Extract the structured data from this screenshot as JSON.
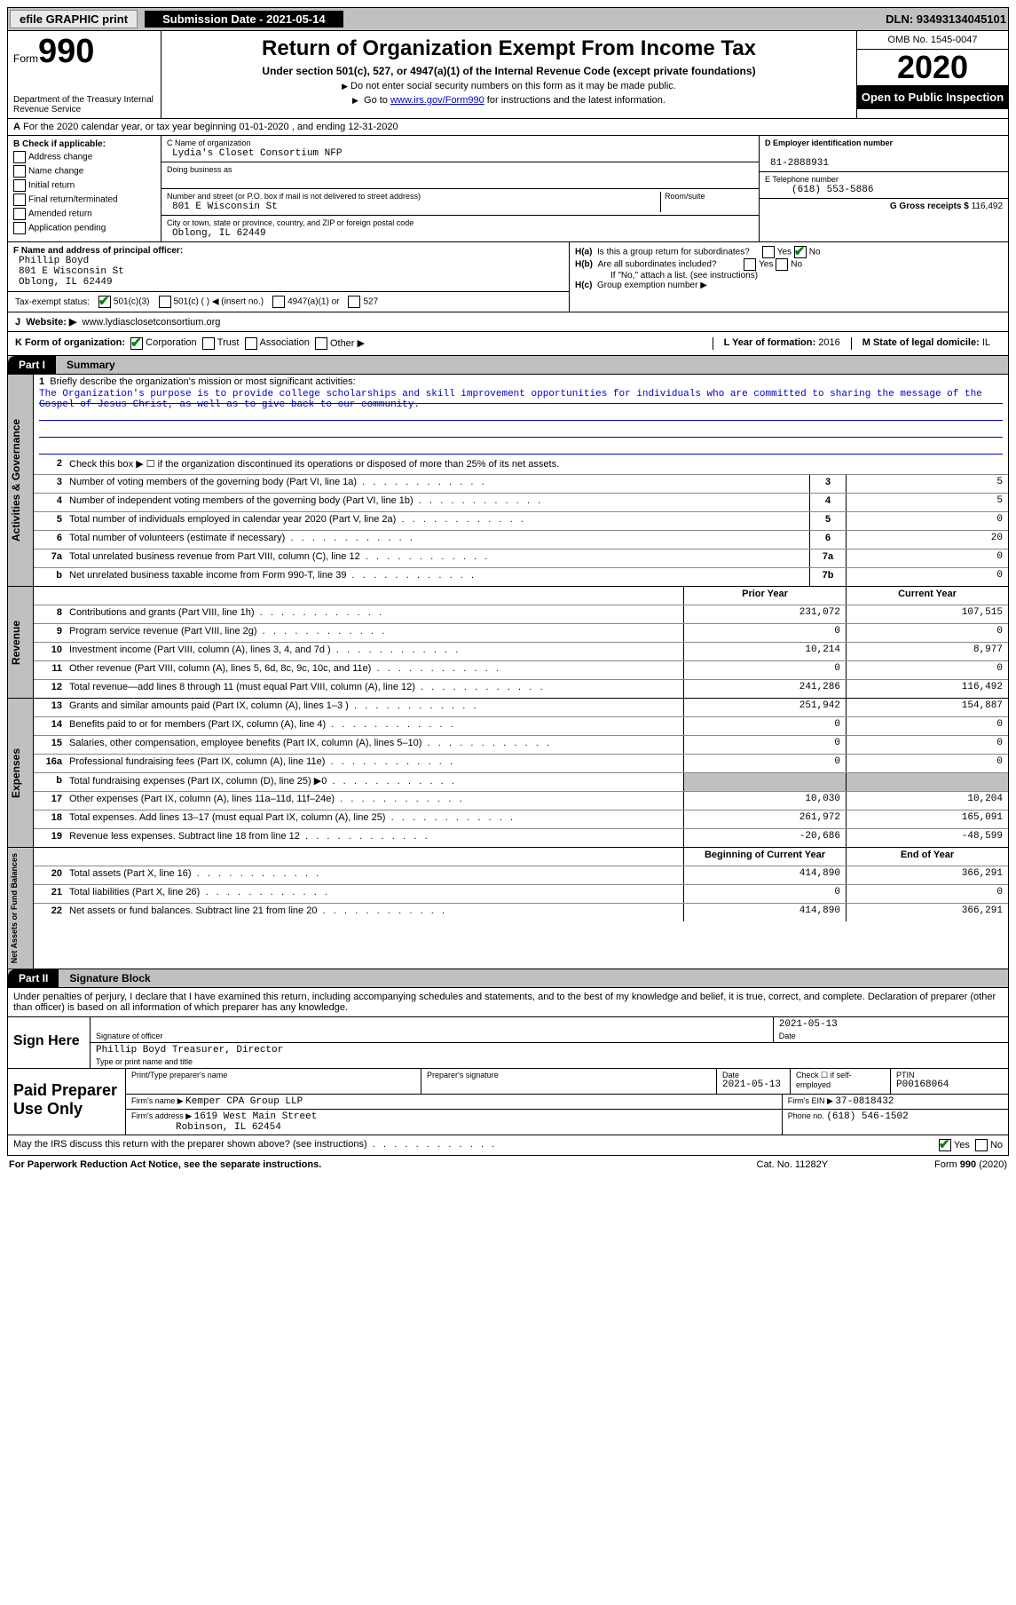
{
  "topbar": {
    "efile": "efile GRAPHIC print",
    "submission": "Submission Date - 2021-05-14",
    "dln": "DLN: 93493134045101"
  },
  "header": {
    "form_label": "Form",
    "form_num": "990",
    "dept": "Department of the Treasury\nInternal Revenue Service",
    "title": "Return of Organization Exempt From Income Tax",
    "sub": "Under section 501(c), 527, or 4947(a)(1) of the Internal Revenue Code (except private foundations)",
    "note1": "Do not enter social security numbers on this form as it may be made public.",
    "note2_pre": "Go to ",
    "note2_link": "www.irs.gov/Form990",
    "note2_post": " for instructions and the latest information.",
    "omb": "OMB No. 1545-0047",
    "year": "2020",
    "inspection": "Open to Public Inspection"
  },
  "lineA": "For the 2020 calendar year, or tax year beginning 01-01-2020     , and ending 12-31-2020",
  "checkB": {
    "title": "B Check if applicable:",
    "items": [
      "Address change",
      "Name change",
      "Initial return",
      "Final return/terminated",
      "Amended return",
      "Application pending"
    ]
  },
  "blockC": {
    "name_lbl": "C Name of organization",
    "name": "Lydia's Closet Consortium NFP",
    "dba_lbl": "Doing business as",
    "dba": "",
    "street_lbl": "Number and street (or P.O. box if mail is not delivered to street address)",
    "room_lbl": "Room/suite",
    "street": "801 E Wisconsin St",
    "city_lbl": "City or town, state or province, country, and ZIP or foreign postal code",
    "city": "Oblong, IL  62449"
  },
  "blockDE": {
    "d_lbl": "D Employer identification number",
    "d_val": "81-2888931",
    "e_lbl": "E Telephone number",
    "e_val": "(618) 553-5886",
    "g_lbl": "G Gross receipts $ ",
    "g_val": "116,492"
  },
  "blockF": {
    "lbl": "F  Name and address of principal officer:",
    "line1": "Phillip Boyd",
    "line2": "801 E Wisconsin St",
    "line3": "Oblong, IL  62449"
  },
  "blockH": {
    "ha": "Is this a group return for subordinates?",
    "hb": "Are all subordinates included?",
    "hb_note": "If \"No,\" attach a list. (see instructions)",
    "hc": "Group exemption number ▶",
    "yes": "Yes",
    "no": "No"
  },
  "taxExempt": {
    "label": "Tax-exempt status:",
    "c3": "501(c)(3)",
    "c_other": "501(c) (   ) ◀ (insert no.)",
    "c4947": "4947(a)(1)  or",
    "c527": "527"
  },
  "lineJ": {
    "label": "Website: ▶",
    "val": "www.lydiasclosetconsortium.org"
  },
  "lineK": {
    "label": "K Form of organization:",
    "corp": "Corporation",
    "trust": "Trust",
    "assoc": "Association",
    "other": "Other ▶",
    "l_lbl": "L Year of formation:",
    "l_val": "2016",
    "m_lbl": "M State of legal domicile:",
    "m_val": "IL"
  },
  "partI": {
    "hdr": "Part I",
    "title": "Summary"
  },
  "summary": {
    "line1_lbl": "Briefly describe the organization's mission or most significant activities:",
    "line1_text": "The Organization's purpose is to provide college scholarships and skill improvement opportunities for individuals who are committed to sharing the message of the Gospel of Jesus Christ, as well as to give back to our community.",
    "line2": "Check this box ▶ ☐  if the organization discontinued its operations or disposed of more than 25% of its net assets.",
    "rows_gov": [
      {
        "n": "3",
        "d": "Number of voting members of the governing body (Part VI, line 1a)",
        "box": "3",
        "v": "5"
      },
      {
        "n": "4",
        "d": "Number of independent voting members of the governing body (Part VI, line 1b)",
        "box": "4",
        "v": "5"
      },
      {
        "n": "5",
        "d": "Total number of individuals employed in calendar year 2020 (Part V, line 2a)",
        "box": "5",
        "v": "0"
      },
      {
        "n": "6",
        "d": "Total number of volunteers (estimate if necessary)",
        "box": "6",
        "v": "20"
      },
      {
        "n": "7a",
        "d": "Total unrelated business revenue from Part VIII, column (C), line 12",
        "box": "7a",
        "v": "0"
      },
      {
        "n": "b",
        "d": "Net unrelated business taxable income from Form 990-T, line 39",
        "box": "7b",
        "v": "0"
      }
    ],
    "col_prior": "Prior Year",
    "col_current": "Current Year",
    "rows_rev": [
      {
        "n": "8",
        "d": "Contributions and grants (Part VIII, line 1h)",
        "p": "231,072",
        "c": "107,515"
      },
      {
        "n": "9",
        "d": "Program service revenue (Part VIII, line 2g)",
        "p": "0",
        "c": "0"
      },
      {
        "n": "10",
        "d": "Investment income (Part VIII, column (A), lines 3, 4, and 7d )",
        "p": "10,214",
        "c": "8,977"
      },
      {
        "n": "11",
        "d": "Other revenue (Part VIII, column (A), lines 5, 6d, 8c, 9c, 10c, and 11e)",
        "p": "0",
        "c": "0"
      },
      {
        "n": "12",
        "d": "Total revenue—add lines 8 through 11 (must equal Part VIII, column (A), line 12)",
        "p": "241,286",
        "c": "116,492"
      }
    ],
    "rows_exp": [
      {
        "n": "13",
        "d": "Grants and similar amounts paid (Part IX, column (A), lines 1–3 )",
        "p": "251,942",
        "c": "154,887"
      },
      {
        "n": "14",
        "d": "Benefits paid to or for members (Part IX, column (A), line 4)",
        "p": "0",
        "c": "0"
      },
      {
        "n": "15",
        "d": "Salaries, other compensation, employee benefits (Part IX, column (A), lines 5–10)",
        "p": "0",
        "c": "0"
      },
      {
        "n": "16a",
        "d": "Professional fundraising fees (Part IX, column (A), line 11e)",
        "p": "0",
        "c": "0"
      },
      {
        "n": "b",
        "d": "Total fundraising expenses (Part IX, column (D), line 25) ▶0",
        "p": "",
        "c": "",
        "shade": true
      },
      {
        "n": "17",
        "d": "Other expenses (Part IX, column (A), lines 11a–11d, 11f–24e)",
        "p": "10,030",
        "c": "10,204"
      },
      {
        "n": "18",
        "d": "Total expenses. Add lines 13–17 (must equal Part IX, column (A), line 25)",
        "p": "261,972",
        "c": "165,091"
      },
      {
        "n": "19",
        "d": "Revenue less expenses. Subtract line 18 from line 12",
        "p": "-20,686",
        "c": "-48,599"
      }
    ],
    "col_begin": "Beginning of Current Year",
    "col_end": "End of Year",
    "rows_net": [
      {
        "n": "20",
        "d": "Total assets (Part X, line 16)",
        "p": "414,890",
        "c": "366,291"
      },
      {
        "n": "21",
        "d": "Total liabilities (Part X, line 26)",
        "p": "0",
        "c": "0"
      },
      {
        "n": "22",
        "d": "Net assets or fund balances. Subtract line 21 from line 20",
        "p": "414,890",
        "c": "366,291"
      }
    ],
    "side_gov": "Activities & Governance",
    "side_rev": "Revenue",
    "side_exp": "Expenses",
    "side_net": "Net Assets or Fund Balances"
  },
  "partII": {
    "hdr": "Part II",
    "title": "Signature Block"
  },
  "sig": {
    "decl": "Under penalties of perjury, I declare that I have examined this return, including accompanying schedules and statements, and to the best of my knowledge and belief, it is true, correct, and complete. Declaration of preparer (other than officer) is based on all information of which preparer has any knowledge.",
    "sign_here": "Sign Here",
    "officer_sig_lbl": "Signature of officer",
    "date_lbl": "Date",
    "date_val": "2021-05-13",
    "name_lbl": "Type or print name and title",
    "name_val": "Phillip Boyd  Treasurer, Director"
  },
  "prep": {
    "title": "Paid Preparer Use Only",
    "pname_lbl": "Print/Type preparer's name",
    "psig_lbl": "Preparer's signature",
    "pdate_lbl": "Date",
    "pdate_val": "2021-05-13",
    "pcheck_lbl": "Check ☐ if self-employed",
    "ptin_lbl": "PTIN",
    "ptin_val": "P00168064",
    "firm_name_lbl": "Firm's name   ▶",
    "firm_name": "Kemper CPA Group LLP",
    "firm_ein_lbl": "Firm's EIN ▶",
    "firm_ein": "37-0818432",
    "firm_addr_lbl": "Firm's address ▶",
    "firm_addr1": "1619 West Main Street",
    "firm_addr2": "Robinson, IL  62454",
    "phone_lbl": "Phone no.",
    "phone": "(618) 546-1502",
    "discuss": "May the IRS discuss this return with the preparer shown above? (see instructions)"
  },
  "footer": {
    "left": "For Paperwork Reduction Act Notice, see the separate instructions.",
    "mid": "Cat. No. 11282Y",
    "right": "Form 990 (2020)"
  }
}
